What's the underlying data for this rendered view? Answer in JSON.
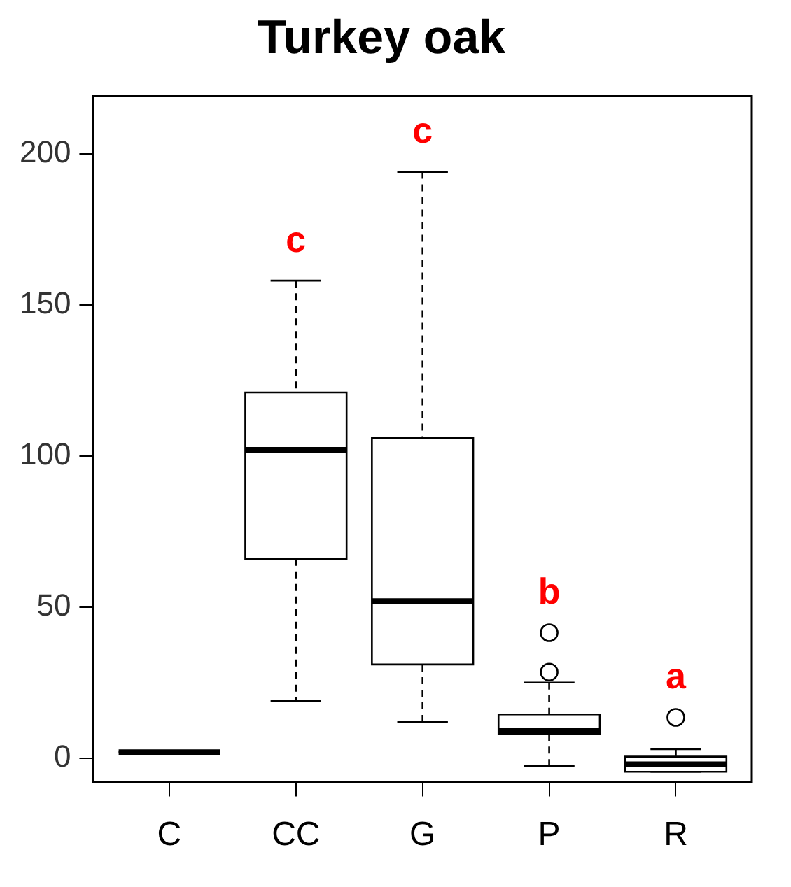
{
  "chart_data": {
    "type": "box",
    "title": "Turkey oak",
    "categories": [
      "C",
      "CC",
      "G",
      "P",
      "R"
    ],
    "boxes": [
      {
        "low": 2,
        "q1": 2,
        "median": 2,
        "q3": 2,
        "high": 2
      },
      {
        "low": 19,
        "q1": 66,
        "median": 102,
        "q3": 121,
        "high": 158
      },
      {
        "low": 12,
        "q1": 31,
        "median": 52,
        "q3": 106,
        "high": 194
      },
      {
        "low": -2.5,
        "q1": 8,
        "median": 9,
        "q3": 14.5,
        "high": 25,
        "outliers": [
          28.5,
          41.5
        ]
      },
      {
        "low": -4.5,
        "q1": -4.5,
        "median": -2,
        "q3": 0.5,
        "high": 3,
        "outliers": [
          13.5
        ]
      }
    ],
    "ylim": [
      -8,
      219
    ],
    "yticks": [
      0,
      50,
      100,
      150,
      200
    ],
    "grid": false,
    "legend": false,
    "annotations": [
      "c",
      "c",
      "b",
      "a"
    ]
  }
}
